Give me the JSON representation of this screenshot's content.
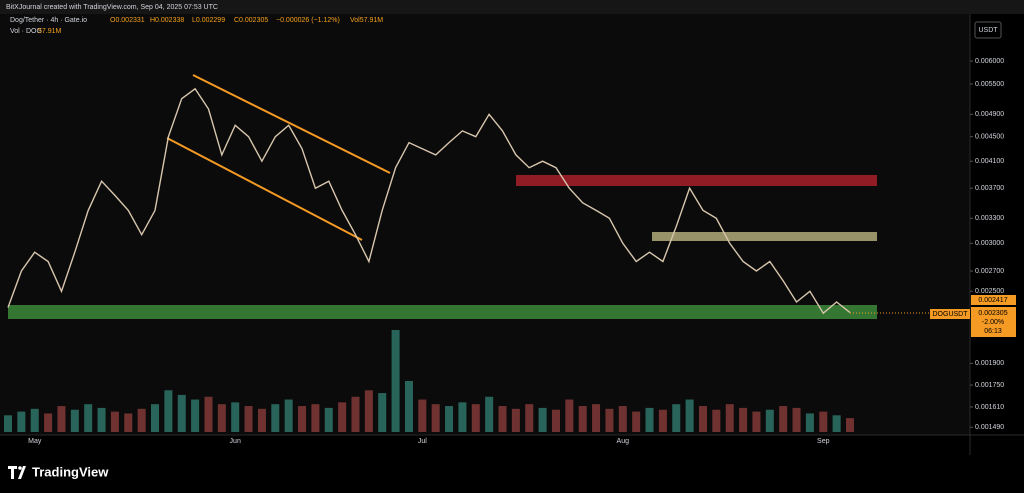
{
  "header": {
    "credit": "BitXJournal created with TradingView.com, Sep 04, 2025 07:53 UTC",
    "symbol": "Dog/Tether · 4h · Gate.io",
    "open": "O0.002331",
    "high": "H0.002338",
    "low": "L0.002299",
    "close": "C0.002305",
    "change": "−0.000026 (−1.12%)",
    "vol": "Vol57.91M",
    "vol_value": "57.91M"
  },
  "currency": "USDT",
  "logo": "TradingView",
  "price_tags": {
    "high": "0.002417",
    "last": "0.002305",
    "change": "-2.00%",
    "countdown": "06:13"
  },
  "chart_data": {
    "type": "line",
    "categories": [
      null,
      null,
      "May",
      null,
      null,
      null,
      null,
      null,
      null,
      null,
      null,
      null,
      null,
      null,
      null,
      null,
      null,
      "Jun",
      null,
      null,
      null,
      null,
      null,
      null,
      null,
      null,
      null,
      null,
      null,
      null,
      null,
      "Jul",
      null,
      null,
      null,
      null,
      null,
      null,
      null,
      null,
      null,
      null,
      null,
      null,
      null,
      null,
      "Aug",
      null,
      null,
      null,
      null,
      null,
      null,
      null,
      null,
      null,
      null,
      null,
      null,
      null,
      null,
      "Sep",
      null,
      null
    ],
    "series": [
      {
        "name": "DOGUSDT",
        "color": "#d8c6ad",
        "values": [
          0.00235,
          0.0027,
          0.0029,
          0.0028,
          0.0025,
          0.0029,
          0.0034,
          0.0038,
          0.0036,
          0.0034,
          0.0031,
          0.0034,
          0.0045,
          0.0052,
          0.0054,
          0.005,
          0.0042,
          0.0047,
          0.0045,
          0.0041,
          0.0045,
          0.0047,
          0.0043,
          0.0037,
          0.0038,
          0.0034,
          0.0031,
          0.0028,
          0.0034,
          0.004,
          0.0044,
          0.0043,
          0.0042,
          0.0044,
          0.0046,
          0.0045,
          0.0049,
          0.0046,
          0.0042,
          0.004,
          0.0041,
          0.004,
          0.0037,
          0.0035,
          0.0034,
          0.0033,
          0.003,
          0.0028,
          0.0029,
          0.0028,
          0.0032,
          0.0037,
          0.0034,
          0.0033,
          0.003,
          0.0028,
          0.0027,
          0.0028,
          0.0026,
          0.0024,
          0.0025,
          0.0023,
          0.0024,
          0.002305
        ]
      },
      {
        "name": "Vol · DOG",
        "color": "#7a8c8a",
        "axis": "volume",
        "values": [
          18,
          22,
          25,
          20,
          28,
          24,
          30,
          26,
          22,
          20,
          25,
          30,
          45,
          40,
          35,
          38,
          30,
          32,
          28,
          25,
          30,
          35,
          28,
          30,
          26,
          32,
          38,
          45,
          42,
          110,
          55,
          35,
          30,
          28,
          32,
          30,
          38,
          28,
          25,
          30,
          26,
          24,
          35,
          28,
          30,
          25,
          28,
          22,
          26,
          24,
          30,
          35,
          28,
          24,
          30,
          26,
          22,
          24,
          28,
          26,
          20,
          22,
          18,
          15
        ]
      }
    ],
    "ylim": [
      0.001447,
      0.00715
    ],
    "log_scale": true,
    "grid": false,
    "yticks": [
      {
        "value": 0.006,
        "label": "0.006000"
      },
      {
        "value": 0.0055,
        "label": "0.005500"
      },
      {
        "value": 0.0049,
        "label": "0.004900"
      },
      {
        "value": 0.0045,
        "label": "0.004500"
      },
      {
        "value": 0.0041,
        "label": "0.004100"
      },
      {
        "value": 0.0037,
        "label": "0.003700"
      },
      {
        "value": 0.0033,
        "label": "0.003300"
      },
      {
        "value": 0.003,
        "label": "0.003000"
      },
      {
        "value": 0.0027,
        "label": "0.002700"
      },
      {
        "value": 0.0025,
        "label": "0.002500"
      },
      {
        "value": 0.0019,
        "label": "0.001900"
      },
      {
        "value": 0.00175,
        "label": "0.001750"
      },
      {
        "value": 0.00161,
        "label": "0.001610"
      },
      {
        "value": 0.00149,
        "label": "0.001490"
      }
    ]
  }
}
